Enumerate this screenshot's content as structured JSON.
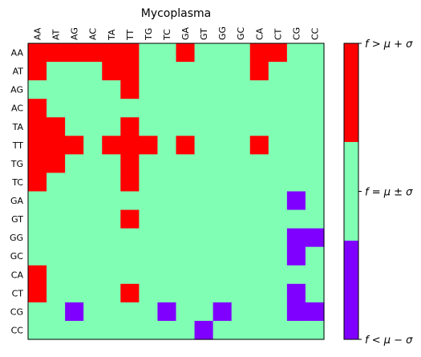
{
  "chart_data": {
    "type": "heatmap",
    "title": "Mycoplasma",
    "x_tick_labels": [
      "AA",
      "AT",
      "AG",
      "AC",
      "TA",
      "TT",
      "TG",
      "TC",
      "GA",
      "GT",
      "GG",
      "GC",
      "CA",
      "CT",
      "CG",
      "CC"
    ],
    "y_tick_labels": [
      "AA",
      "AT",
      "AG",
      "AC",
      "TA",
      "TT",
      "TG",
      "TC",
      "GA",
      "GT",
      "GG",
      "GC",
      "CA",
      "CT",
      "CG",
      "CC"
    ],
    "legend_position": "right",
    "categories": [
      {
        "level": -1,
        "label": "f < μ − σ",
        "color": "#8000ff"
      },
      {
        "level": 0,
        "label": "f = μ ± σ",
        "color": "#80ffb4"
      },
      {
        "level": 1,
        "label": "f > μ + σ",
        "color": "#ff0000"
      }
    ],
    "matrix": [
      [
        1,
        1,
        1,
        1,
        1,
        1,
        0,
        0,
        1,
        0,
        0,
        0,
        1,
        1,
        0,
        0
      ],
      [
        1,
        0,
        0,
        0,
        1,
        1,
        0,
        0,
        0,
        0,
        0,
        0,
        1,
        0,
        0,
        0
      ],
      [
        0,
        0,
        0,
        0,
        0,
        1,
        0,
        0,
        0,
        0,
        0,
        0,
        0,
        0,
        0,
        0
      ],
      [
        1,
        0,
        0,
        0,
        0,
        0,
        0,
        0,
        0,
        0,
        0,
        0,
        0,
        0,
        0,
        0
      ],
      [
        1,
        1,
        0,
        0,
        0,
        1,
        0,
        0,
        0,
        0,
        0,
        0,
        0,
        0,
        0,
        0
      ],
      [
        1,
        1,
        1,
        0,
        1,
        1,
        1,
        0,
        1,
        0,
        0,
        0,
        1,
        0,
        0,
        0
      ],
      [
        1,
        1,
        0,
        0,
        0,
        1,
        0,
        0,
        0,
        0,
        0,
        0,
        0,
        0,
        0,
        0
      ],
      [
        1,
        0,
        0,
        0,
        0,
        1,
        0,
        0,
        0,
        0,
        0,
        0,
        0,
        0,
        0,
        0
      ],
      [
        0,
        0,
        0,
        0,
        0,
        0,
        0,
        0,
        0,
        0,
        0,
        0,
        0,
        0,
        -1,
        0
      ],
      [
        0,
        0,
        0,
        0,
        0,
        1,
        0,
        0,
        0,
        0,
        0,
        0,
        0,
        0,
        0,
        0
      ],
      [
        0,
        0,
        0,
        0,
        0,
        0,
        0,
        0,
        0,
        0,
        0,
        0,
        0,
        0,
        -1,
        -1
      ],
      [
        0,
        0,
        0,
        0,
        0,
        0,
        0,
        0,
        0,
        0,
        0,
        0,
        0,
        0,
        -1,
        0
      ],
      [
        1,
        0,
        0,
        0,
        0,
        0,
        0,
        0,
        0,
        0,
        0,
        0,
        0,
        0,
        0,
        0
      ],
      [
        1,
        0,
        0,
        0,
        0,
        1,
        0,
        0,
        0,
        0,
        0,
        0,
        0,
        0,
        -1,
        0
      ],
      [
        0,
        0,
        -1,
        0,
        0,
        0,
        0,
        -1,
        0,
        0,
        -1,
        0,
        0,
        0,
        -1,
        -1
      ],
      [
        0,
        0,
        0,
        0,
        0,
        0,
        0,
        0,
        0,
        -1,
        0,
        0,
        0,
        0,
        0,
        0
      ]
    ]
  }
}
